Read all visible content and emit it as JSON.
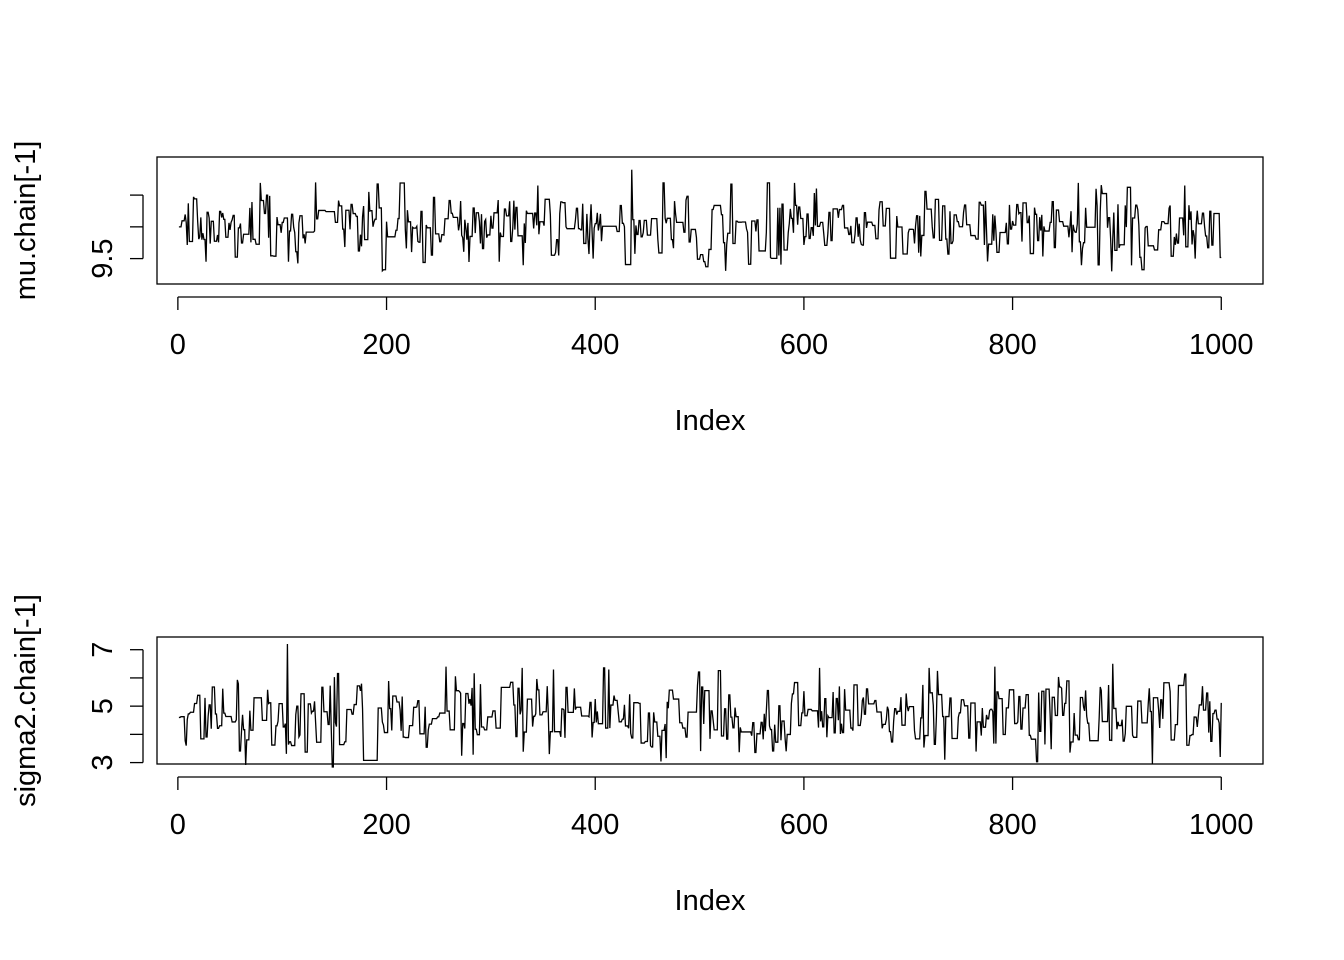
{
  "chart_data": [
    {
      "type": "line",
      "xlabel": "Index",
      "ylabel": "mu.chain[-1]",
      "xlim": [
        -20,
        1040
      ],
      "ylim": [
        9.42,
        9.82
      ],
      "x_ticks": [
        0,
        200,
        400,
        600,
        800,
        1000
      ],
      "x_tick_labels": [
        "0",
        "200",
        "400",
        "600",
        "800",
        "1000"
      ],
      "y_ticks": [
        9.5,
        9.6,
        9.7
      ],
      "y_tick_labels": [
        "9.5",
        "",
        ""
      ],
      "series": [
        {
          "x_start": 1,
          "x_end": 1000,
          "description_values": {
            "center": 9.6,
            "typical_low": 9.53,
            "typical_high": 9.68,
            "peaks": [
              [
                132,
                9.74
              ],
              [
                345,
                9.73
              ],
              [
                435,
                9.78
              ],
              [
                965,
                9.73
              ],
              [
                183,
                9.71
              ],
              [
                880,
                9.72
              ]
            ],
            "troughs": [
              [
                27,
                9.49
              ],
              [
                308,
                9.49
              ],
              [
                365,
                9.51
              ],
              [
                895,
                9.46
              ],
              [
                975,
                9.5
              ],
              [
                576,
                9.51
              ],
              [
                398,
                9.5
              ]
            ]
          }
        }
      ],
      "grid": false,
      "line_color": "#000000"
    },
    {
      "type": "line",
      "xlabel": "Index",
      "ylabel": "sigma2.chain[-1]",
      "xlim": [
        -20,
        1040
      ],
      "ylim": [
        2.95,
        7.45
      ],
      "x_ticks": [
        0,
        200,
        400,
        600,
        800,
        1000
      ],
      "x_tick_labels": [
        "0",
        "200",
        "400",
        "600",
        "800",
        "1000"
      ],
      "y_ticks": [
        3,
        4,
        5,
        6,
        7
      ],
      "y_tick_labels": [
        "3",
        "",
        "5",
        "",
        "7"
      ],
      "series": [
        {
          "x_start": 1,
          "x_end": 1000,
          "description_values": {
            "center": 4.6,
            "typical_low": 3.8,
            "typical_high": 5.7,
            "peaks": [
              [
                105,
                7.2
              ],
              [
                257,
                6.4
              ],
              [
                896,
                6.5
              ],
              [
                783,
                6.4
              ],
              [
                413,
                6.3
              ],
              [
                360,
                6.3
              ]
            ],
            "troughs": [
              [
                735,
                3.1
              ],
              [
                999,
                3.2
              ],
              [
                356,
                3.3
              ],
              [
                583,
                3.4
              ],
              [
                8,
                3.6
              ]
            ]
          }
        }
      ],
      "grid": false,
      "line_color": "#000000"
    }
  ]
}
